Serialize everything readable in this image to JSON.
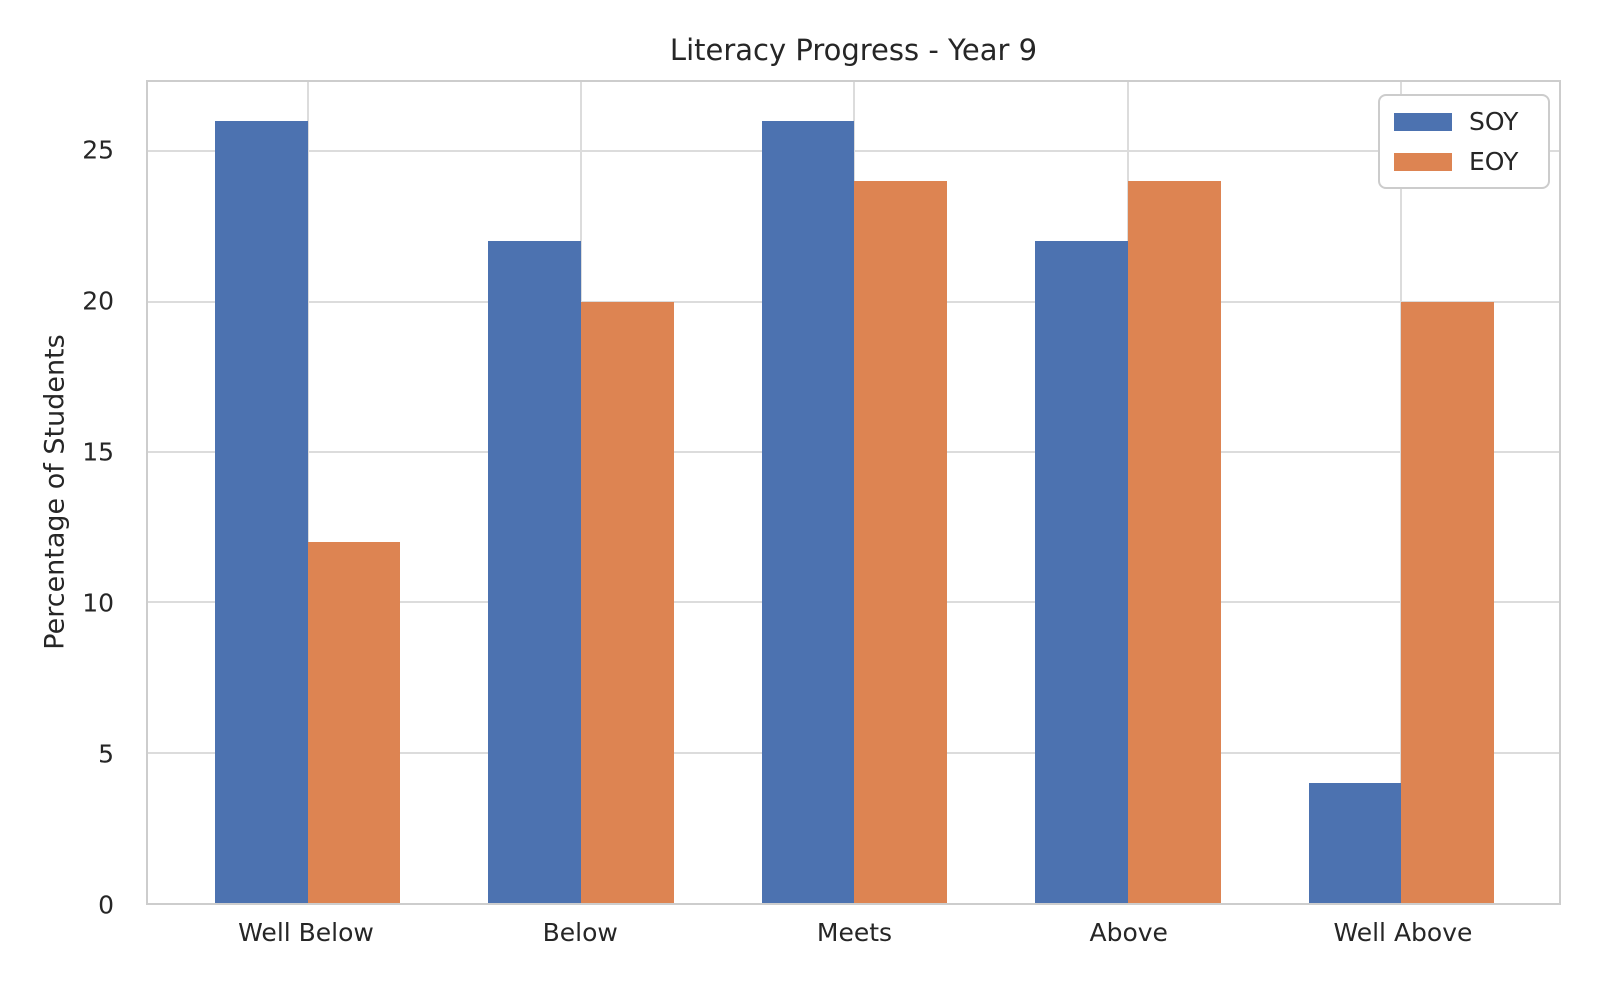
{
  "chart_data": {
    "type": "bar",
    "title": "Literacy Progress - Year 9",
    "xlabel": "",
    "ylabel": "Percentage of Students",
    "categories": [
      "Well Below",
      "Below",
      "Meets",
      "Above",
      "Well Above"
    ],
    "series": [
      {
        "name": "SOY",
        "color": "#4C72B0",
        "values": [
          26,
          22,
          26,
          22,
          4
        ]
      },
      {
        "name": "EOY",
        "color": "#DD8452",
        "values": [
          12,
          20,
          24,
          24,
          20
        ]
      }
    ],
    "yticks": [
      0,
      5,
      10,
      15,
      20,
      25
    ],
    "ylim": [
      0,
      27.3
    ],
    "grid": true,
    "grid_color": "#dcdcdc",
    "spine_color": "#cdcdcd",
    "text_color": "#262626",
    "legend_position": "upper right"
  }
}
